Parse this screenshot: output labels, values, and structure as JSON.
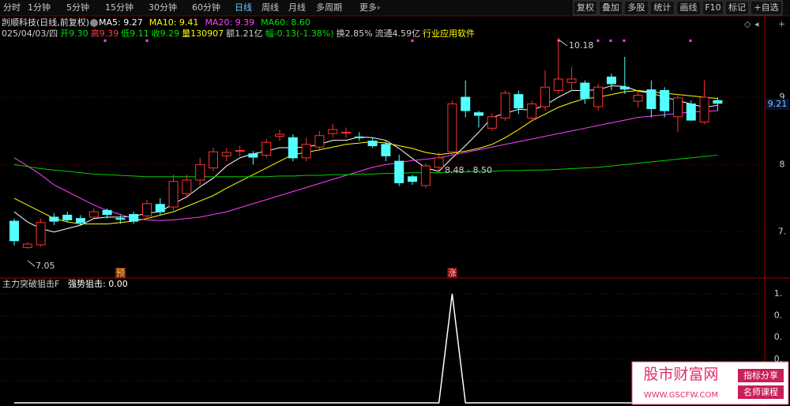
{
  "toolbar": {
    "left": [
      "分时",
      "1分钟",
      "5分钟",
      "15分钟",
      "30分钟",
      "60分钟",
      "日线",
      "周线",
      "月线",
      "多周期",
      "更多›"
    ],
    "right": [
      "复权",
      "叠加",
      "多股",
      "统计",
      "画线",
      "F10",
      "标记",
      "+自选"
    ]
  },
  "header": {
    "stock": "剀顺科技(日线,前复权)",
    "ma_labels": [
      {
        "text": "MA5: 9.27",
        "color": "#ffffff"
      },
      {
        "text": "MA10: 9.41",
        "color": "#ffff00"
      },
      {
        "text": "MA20: 9.39",
        "color": "#ff40ff"
      },
      {
        "text": "MA60: 8.60",
        "color": "#00e000"
      }
    ],
    "quote": [
      {
        "text": "025/04/03/四",
        "color": "#d0d0d0"
      },
      {
        "text": "开9.30",
        "color": "#00e000"
      },
      {
        "text": "高9.39",
        "color": "#ff4040"
      },
      {
        "text": "低9.11",
        "color": "#00e000"
      },
      {
        "text": "收9.29",
        "color": "#00e000"
      },
      {
        "text": "量130907",
        "color": "#ffff00"
      },
      {
        "text": "额1.21亿",
        "color": "#d0d0d0"
      },
      {
        "text": "幅-0.13(-1.38%)",
        "color": "#00e000"
      },
      {
        "text": "换2.85%",
        "color": "#d0d0d0"
      },
      {
        "text": "流通4.59亿",
        "color": "#d0d0d0"
      },
      {
        "text": "行业应用软件",
        "color": "#ffff00"
      }
    ]
  },
  "chart": {
    "ylim": [
      6.28,
      10.18
    ],
    "yticks": [
      {
        "value": 9.3,
        "label": "9"
      },
      {
        "value": 8.3,
        "label": "8"
      },
      {
        "value": 7.3,
        "label": "7."
      }
    ],
    "up_color": "#ff3232",
    "down_color": "#54ffff",
    "candles": [
      [
        7.46,
        7.5,
        7.1,
        7.17
      ],
      [
        7.07,
        7.15,
        7.05,
        7.12
      ],
      [
        7.11,
        7.5,
        7.08,
        7.44
      ],
      [
        7.52,
        7.58,
        7.4,
        7.46
      ],
      [
        7.55,
        7.6,
        7.45,
        7.48
      ],
      [
        7.5,
        7.55,
        7.4,
        7.44
      ],
      [
        7.52,
        7.65,
        7.5,
        7.6
      ],
      [
        7.62,
        7.65,
        7.5,
        7.56
      ],
      [
        7.5,
        7.55,
        7.42,
        7.49
      ],
      [
        7.56,
        7.6,
        7.42,
        7.46
      ],
      [
        7.54,
        7.78,
        7.5,
        7.72
      ],
      [
        7.71,
        7.8,
        7.55,
        7.6
      ],
      [
        7.67,
        8.15,
        7.62,
        8.05
      ],
      [
        7.87,
        8.15,
        7.8,
        8.07
      ],
      [
        8.07,
        8.4,
        8.0,
        8.3
      ],
      [
        8.25,
        8.55,
        8.2,
        8.49
      ],
      [
        8.43,
        8.55,
        8.35,
        8.48
      ],
      [
        8.5,
        8.58,
        8.42,
        8.51
      ],
      [
        8.46,
        8.5,
        8.3,
        8.41
      ],
      [
        8.44,
        8.68,
        8.4,
        8.63
      ],
      [
        8.72,
        8.82,
        8.65,
        8.75
      ],
      [
        8.7,
        8.75,
        8.35,
        8.4
      ],
      [
        8.4,
        8.7,
        8.35,
        8.6
      ],
      [
        8.56,
        8.8,
        8.5,
        8.73
      ],
      [
        8.76,
        8.9,
        8.7,
        8.82
      ],
      [
        8.77,
        8.85,
        8.7,
        8.78
      ],
      [
        8.71,
        8.78,
        8.65,
        8.7
      ],
      [
        8.65,
        8.7,
        8.55,
        8.58
      ],
      [
        8.6,
        8.65,
        8.35,
        8.43
      ],
      [
        8.35,
        8.45,
        7.98,
        8.03
      ],
      [
        8.12,
        8.15,
        8.0,
        8.05
      ],
      [
        7.99,
        8.32,
        7.95,
        8.28
      ],
      [
        8.26,
        8.48,
        8.2,
        8.4
      ],
      [
        8.49,
        9.25,
        8.45,
        9.2
      ],
      [
        9.3,
        9.55,
        9.0,
        9.1
      ],
      [
        9.07,
        9.1,
        8.85,
        9.03
      ],
      [
        8.84,
        9.06,
        8.8,
        9.01
      ],
      [
        8.99,
        9.4,
        8.95,
        9.36
      ],
      [
        9.34,
        9.4,
        9.05,
        9.14
      ],
      [
        8.99,
        9.25,
        8.95,
        9.2
      ],
      [
        9.16,
        9.7,
        9.1,
        9.45
      ],
      [
        9.4,
        10.18,
        9.35,
        9.57
      ],
      [
        9.52,
        9.75,
        9.4,
        9.57
      ],
      [
        9.51,
        9.55,
        9.2,
        9.28
      ],
      [
        9.16,
        9.5,
        9.1,
        9.45
      ],
      [
        9.6,
        9.65,
        9.4,
        9.5
      ],
      [
        9.45,
        9.9,
        9.35,
        9.42
      ],
      [
        9.24,
        9.4,
        9.15,
        9.33
      ],
      [
        9.41,
        9.55,
        9.0,
        9.13
      ],
      [
        9.4,
        9.45,
        9.0,
        9.1
      ],
      [
        9.01,
        9.35,
        8.78,
        9.29
      ],
      [
        9.2,
        9.25,
        8.95,
        8.96
      ],
      [
        8.93,
        9.55,
        8.9,
        9.3
      ],
      [
        9.25,
        9.3,
        9.1,
        9.21
      ]
    ],
    "ma": [
      {
        "color": "#ffffff",
        "values": [
          7.6,
          7.45,
          7.35,
          7.3,
          7.35,
          7.4,
          7.5,
          7.52,
          7.52,
          7.53,
          7.58,
          7.6,
          7.72,
          7.82,
          7.97,
          8.1,
          8.28,
          8.4,
          8.46,
          8.5,
          8.55,
          8.55,
          8.56,
          8.6,
          8.66,
          8.66,
          8.71,
          8.7,
          8.66,
          8.54,
          8.39,
          8.25,
          8.2,
          8.4,
          8.58,
          8.78,
          9.0,
          9.06,
          9.12,
          9.11,
          9.18,
          9.3,
          9.4,
          9.4,
          9.41,
          9.47,
          9.46,
          9.39,
          9.36,
          9.3,
          9.25,
          9.2,
          9.15,
          9.18
        ]
      },
      {
        "color": "#ffff00",
        "values": [
          7.8,
          7.7,
          7.6,
          7.5,
          7.45,
          7.42,
          7.42,
          7.42,
          7.44,
          7.46,
          7.5,
          7.55,
          7.6,
          7.68,
          7.76,
          7.84,
          7.95,
          8.05,
          8.15,
          8.25,
          8.35,
          8.45,
          8.48,
          8.52,
          8.56,
          8.6,
          8.62,
          8.64,
          8.62,
          8.58,
          8.54,
          8.48,
          8.45,
          8.47,
          8.5,
          8.54,
          8.6,
          8.7,
          8.82,
          8.95,
          9.05,
          9.15,
          9.22,
          9.28,
          9.3,
          9.34,
          9.38,
          9.4,
          9.38,
          9.36,
          9.34,
          9.32,
          9.3,
          9.28
        ]
      },
      {
        "color": "#ff40ff",
        "values": [
          8.4,
          8.28,
          8.15,
          8.0,
          7.9,
          7.8,
          7.7,
          7.62,
          7.56,
          7.5,
          7.48,
          7.47,
          7.48,
          7.5,
          7.52,
          7.56,
          7.6,
          7.66,
          7.72,
          7.78,
          7.84,
          7.9,
          7.96,
          8.02,
          8.08,
          8.14,
          8.2,
          8.26,
          8.3,
          8.33,
          8.36,
          8.38,
          8.4,
          8.44,
          8.48,
          8.52,
          8.56,
          8.6,
          8.64,
          8.68,
          8.72,
          8.76,
          8.8,
          8.84,
          8.88,
          8.92,
          8.96,
          9.0,
          9.02,
          9.04,
          9.06,
          9.08,
          9.09,
          9.1
        ]
      },
      {
        "color": "#00d000",
        "values": [
          8.3,
          8.27,
          8.24,
          8.22,
          8.2,
          8.18,
          8.16,
          8.15,
          8.14,
          8.13,
          8.12,
          8.12,
          8.12,
          8.12,
          8.12,
          8.12,
          8.12,
          8.12,
          8.12,
          8.12,
          8.13,
          8.13,
          8.14,
          8.14,
          8.15,
          8.15,
          8.16,
          8.16,
          8.17,
          8.17,
          8.18,
          8.18,
          8.18,
          8.19,
          8.19,
          8.2,
          8.2,
          8.21,
          8.21,
          8.22,
          8.22,
          8.23,
          8.24,
          8.25,
          8.26,
          8.28,
          8.3,
          8.32,
          8.34,
          8.36,
          8.38,
          8.4,
          8.42,
          8.44
        ]
      }
    ],
    "annotations": {
      "high": "10.18",
      "low": "7.05",
      "range": "8.48 - 8.50",
      "last": "9.21",
      "pre": "预",
      "rise": "涨"
    }
  },
  "indicator": {
    "name": "主力突破狙击F",
    "label": "强势狙击: 0.00",
    "color": "#ffffff",
    "ylim": [
      0,
      1
    ],
    "yticks": [
      {
        "value": 1,
        "label": "1."
      },
      {
        "value": 0.8,
        "label": "0."
      },
      {
        "value": 0.6,
        "label": "0."
      },
      {
        "value": 0.4,
        "label": "0."
      },
      {
        "value": 0.2,
        "label": "0."
      }
    ],
    "values": [
      0,
      0,
      0,
      0,
      0,
      0,
      0,
      0,
      0,
      0,
      0,
      0,
      0,
      0,
      0,
      0,
      0,
      0,
      0,
      0,
      0,
      0,
      0,
      0,
      0,
      0,
      0,
      0,
      0,
      0,
      0,
      0,
      0,
      1,
      0,
      0,
      0,
      0,
      0,
      0,
      0,
      0,
      0,
      0,
      0,
      0,
      0,
      0,
      0,
      0,
      0,
      0,
      0,
      0
    ]
  },
  "watermark": {
    "title": "股市财富网",
    "url": "WWW.GSCFW.COM",
    "tag1": "指标分享",
    "tag2": "名师课程"
  }
}
